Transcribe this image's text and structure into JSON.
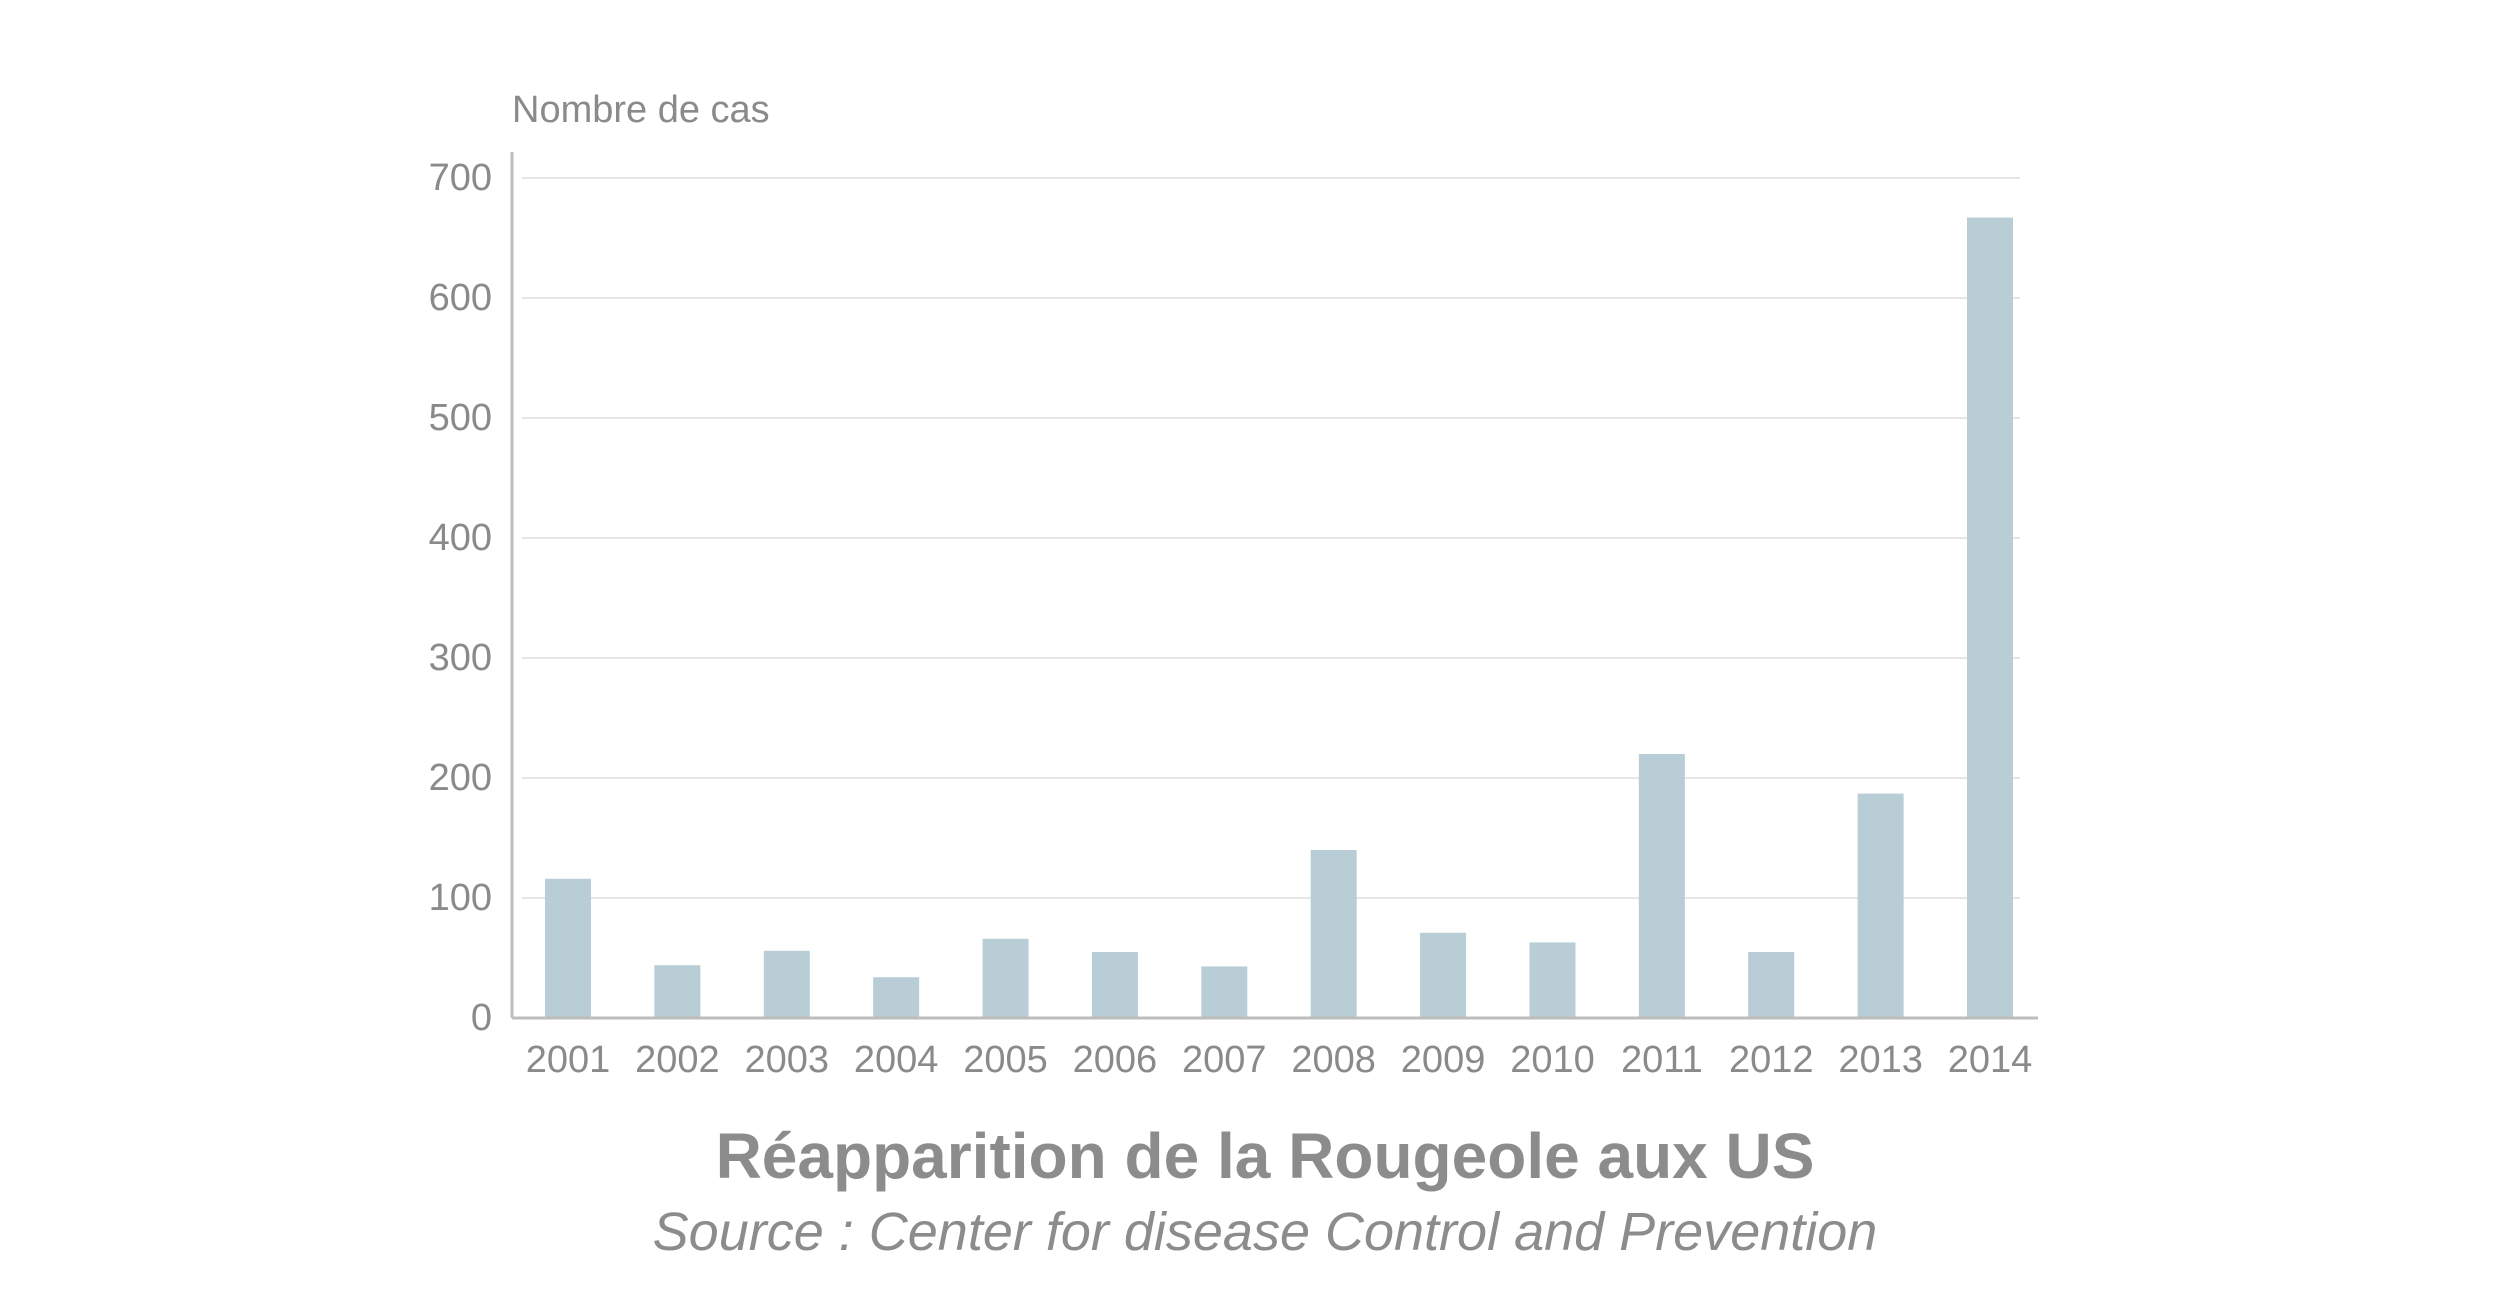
{
  "chart_data": {
    "type": "bar",
    "title": "Réapparition de la Rougeole aux US",
    "subtitle": "Source : Center for disease Control and Prevention",
    "ylabel": "Nombre de cas",
    "xlabel": "",
    "categories": [
      "2001",
      "2002",
      "2003",
      "2004",
      "2005",
      "2006",
      "2007",
      "2008",
      "2009",
      "2010",
      "2011",
      "2012",
      "2013",
      "2014"
    ],
    "values": [
      116,
      44,
      56,
      34,
      66,
      55,
      43,
      140,
      71,
      63,
      220,
      55,
      187,
      667
    ],
    "ylim": [
      0,
      700
    ],
    "yticks": [
      0,
      100,
      200,
      300,
      400,
      500,
      600,
      700
    ],
    "ytick_labels": [
      "0",
      "100",
      "200",
      "300",
      "400",
      "500",
      "600",
      "700"
    ],
    "grid": true,
    "legend": "none",
    "colors": {
      "bar": "#b8cdd5",
      "grid": "#e6e6e6",
      "axis": "#bdbdbd",
      "text": "#8a8a8a"
    }
  }
}
